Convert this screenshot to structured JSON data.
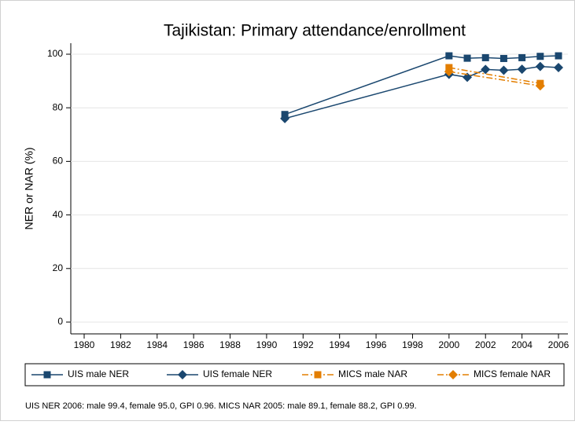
{
  "chart_data": {
    "type": "line",
    "title": "Tajikistan: Primary attendance/enrollment",
    "y_label": "NER or NAR (%)",
    "note": "UIS NER 2006: male 99.4, female 95.0, GPI 0.96. MICS NAR 2005: male 89.1, female 88.2, GPI 0.99.",
    "xlim": [
      1980,
      2006
    ],
    "xticks": [
      1980,
      1982,
      1984,
      1986,
      1988,
      1990,
      1992,
      1994,
      1996,
      1998,
      2000,
      2002,
      2004,
      2006
    ],
    "ylim": [
      0,
      100
    ],
    "yticks": [
      0,
      20,
      40,
      60,
      80,
      100
    ],
    "grid": true,
    "legend": "bottom",
    "series": [
      {
        "name": "UIS male NER",
        "color": "#1a476f",
        "marker": "square",
        "dash": "solid",
        "x": [
          1991,
          2000,
          2001,
          2002,
          2003,
          2004,
          2005,
          2006
        ],
        "values": [
          77.5,
          99.4,
          98.5,
          98.7,
          98.4,
          98.7,
          99.2,
          99.4
        ]
      },
      {
        "name": "UIS female NER",
        "color": "#1a476f",
        "marker": "diamond",
        "dash": "solid",
        "x": [
          1991,
          2000,
          2001,
          2002,
          2003,
          2004,
          2005,
          2006
        ],
        "values": [
          76,
          92.5,
          91.4,
          94.3,
          94.0,
          94.4,
          95.4,
          95.0
        ]
      },
      {
        "name": "MICS male NAR",
        "color": "#e37e00",
        "marker": "square",
        "dash": "dashdot",
        "x": [
          2000,
          2005
        ],
        "values": [
          95,
          89.1
        ]
      },
      {
        "name": "MICS female NAR",
        "color": "#e37e00",
        "marker": "diamond",
        "dash": "dashdot",
        "x": [
          2000,
          2005
        ],
        "values": [
          93.5,
          88.2
        ]
      }
    ]
  }
}
